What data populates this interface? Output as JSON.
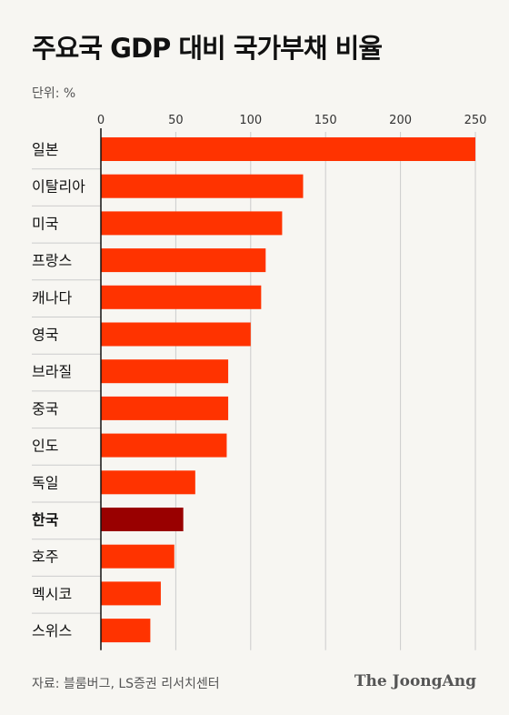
{
  "header": {
    "title": "주요국 GDP 대비 국가부채 비율",
    "unit": "단위: %"
  },
  "footer": {
    "source": "자료: 블룸버그, LS증권 리서치센터",
    "logo": "The JoongAng"
  },
  "colors": {
    "bar": "#ff3300",
    "highlight": "#990000",
    "grid": "#cccccc",
    "axis": "#111111",
    "background": "#f7f6f2"
  },
  "chart_data": {
    "type": "bar",
    "orientation": "horizontal",
    "title": "주요국 GDP 대비 국가부채 비율",
    "xlim": [
      0,
      250
    ],
    "xticks": [
      0,
      50,
      100,
      150,
      200,
      250
    ],
    "grid": true,
    "highlight": "한국",
    "categories": [
      "일본",
      "이탈리아",
      "미국",
      "프랑스",
      "캐나다",
      "영국",
      "브라질",
      "중국",
      "인도",
      "독일",
      "한국",
      "호주",
      "멕시코",
      "스위스"
    ],
    "values": [
      250,
      135,
      121,
      110,
      107,
      100,
      85,
      85,
      84,
      63,
      55,
      49,
      40,
      33
    ]
  }
}
